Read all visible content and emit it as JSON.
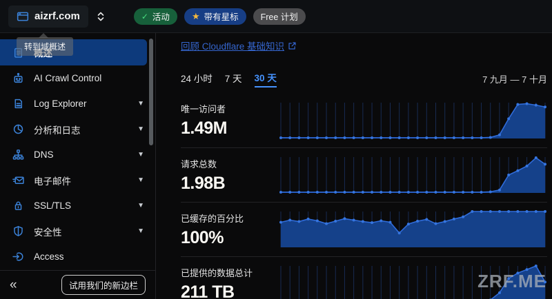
{
  "topbar": {
    "domain": "aizrf.com",
    "badges": {
      "status": "活动",
      "starred": "带有星标",
      "plan": "Free 计划"
    }
  },
  "sidebar": {
    "tooltip": "转到域概述",
    "items": [
      {
        "label": "概述"
      },
      {
        "label": "AI Crawl Control"
      },
      {
        "label": "Log Explorer"
      },
      {
        "label": "分析和日志"
      },
      {
        "label": "DNS"
      },
      {
        "label": "电子邮件"
      },
      {
        "label": "SSL/TLS"
      },
      {
        "label": "安全性"
      },
      {
        "label": "Access"
      }
    ],
    "collapse_glyph": "«",
    "new_sidebar_button": "试用我们的新边栏"
  },
  "main": {
    "review_link": "回顾 Cloudflare 基础知识",
    "tabs": [
      {
        "label": "24 小时"
      },
      {
        "label": "7 天"
      },
      {
        "label": "30 天"
      }
    ],
    "date_range": "7 九月 — 7 十月",
    "metrics": [
      {
        "label": "唯一访问者",
        "value": "1.49M"
      },
      {
        "label": "请求总数",
        "value": "1.98B"
      },
      {
        "label": "已缓存的百分比",
        "value": "100%"
      },
      {
        "label": "已提供的数据总计",
        "value": "211 TB"
      }
    ]
  },
  "watermark": "ZRF.ME",
  "colors": {
    "chart_line": "#2f6bd9",
    "chart_dot": "#3575e0",
    "chart_fill": "#15418a",
    "chart_grid": "#182b52",
    "accent_blue": "#4693ff",
    "link_blue": "#3566cf",
    "badge_green": "#17603b",
    "badge_blue": "#173e85",
    "badge_gray": "#4b4b4d",
    "selected_nav": "#0d3a7c"
  },
  "chart_data": [
    {
      "type": "area",
      "title": "唯一访问者 (30 天)",
      "x_range": "7 九月 — 7 十月, 30 daily points",
      "unit": "relative % of peak",
      "values": [
        2,
        2,
        2,
        2,
        2,
        2,
        2,
        2,
        2,
        2,
        2,
        2,
        2,
        2,
        2,
        2,
        2,
        2,
        2,
        2,
        2,
        2,
        2,
        3,
        10,
        55,
        95,
        97,
        93,
        88
      ],
      "total": "1.49M",
      "grid": "vertical",
      "legend": "none"
    },
    {
      "type": "area",
      "title": "请求总数 (30 天)",
      "x_range": "7 九月 — 7 十月, 30 daily points",
      "unit": "relative % of peak",
      "values": [
        2,
        2,
        2,
        2,
        2,
        2,
        2,
        2,
        2,
        2,
        2,
        2,
        2,
        2,
        2,
        2,
        2,
        2,
        2,
        2,
        2,
        2,
        2,
        3,
        8,
        50,
        62,
        75,
        98,
        80
      ],
      "total": "1.98B",
      "grid": "vertical",
      "legend": "none"
    },
    {
      "type": "area",
      "title": "已缓存的百分比 (30 天)",
      "x_range": "7 九月 — 7 十月, 30 daily points",
      "unit": "percent cached",
      "values": [
        70,
        76,
        72,
        79,
        74,
        66,
        73,
        80,
        76,
        72,
        69,
        74,
        70,
        40,
        65,
        73,
        78,
        66,
        72,
        79,
        85,
        100,
        100,
        100,
        100,
        100,
        100,
        100,
        100,
        100
      ],
      "total": "100%",
      "grid": "vertical",
      "legend": "none"
    },
    {
      "type": "area",
      "title": "已提供的数据总计 (30 天)",
      "x_range": "7 九月 — 7 十月, 30 daily points",
      "unit": "relative % of peak",
      "values": [
        2,
        2,
        2,
        2,
        2,
        2,
        2,
        2,
        2,
        2,
        2,
        2,
        2,
        2,
        2,
        2,
        2,
        2,
        2,
        2,
        2,
        2,
        2,
        5,
        25,
        65,
        80,
        90,
        100,
        55
      ],
      "total": "211 TB",
      "grid": "vertical",
      "legend": "none"
    }
  ]
}
